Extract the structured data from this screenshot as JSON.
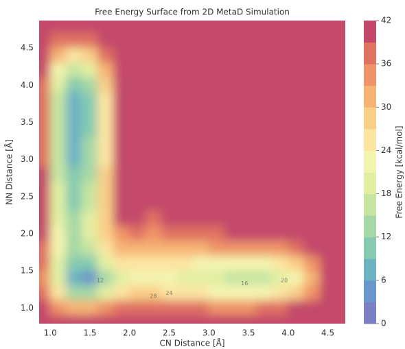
{
  "chart_data": {
    "type": "contourf",
    "title": "Free Energy Surface from 2D MetaD Simulation",
    "xlabel": "CN Distance [Å]",
    "ylabel": "NN Distance [Å]",
    "colorbar_label": "Free Energy [kcal/mol]",
    "xlim": [
      0.86,
      4.72
    ],
    "ylim": [
      0.79,
      4.87
    ],
    "xticks": [
      {
        "value": 1,
        "label": "1.0"
      },
      1.5,
      {
        "value": 2,
        "label": "2.0"
      },
      2.5,
      {
        "value": 3,
        "label": "3.0"
      },
      3.5,
      {
        "value": 4,
        "label": "4.0"
      },
      4.5
    ],
    "yticks": [
      {
        "value": 1,
        "label": "1.0"
      },
      1.5,
      {
        "value": 2,
        "label": "2.0"
      },
      2.5,
      {
        "value": 3,
        "label": "3.0"
      },
      3.5,
      {
        "value": 4,
        "label": "4.0"
      },
      4.5
    ],
    "clim": [
      0,
      42
    ],
    "cticks": [
      0,
      6,
      12,
      18,
      24,
      30,
      36,
      42
    ],
    "levels": [
      0,
      3,
      6,
      9,
      12,
      15,
      18,
      21,
      24,
      27,
      30,
      33,
      36,
      39,
      42
    ],
    "colors": [
      "#7b80c2",
      "#6a97c9",
      "#6db2c2",
      "#86cbb0",
      "#a5d8a6",
      "#c6e5a1",
      "#e2efa3",
      "#f4f4b0",
      "#fbe5a1",
      "#f9cf88",
      "#f6b474",
      "#ef9468",
      "#e07262",
      "#c4486a"
    ],
    "contour_labels": [
      {
        "x": 3.45,
        "y": 1.33,
        "level": 16
      },
      {
        "x": 3.95,
        "y": 1.37,
        "level": 20
      },
      {
        "x": 2.5,
        "y": 1.2,
        "level": 24
      },
      {
        "x": 2.3,
        "y": 1.16,
        "level": 28
      },
      {
        "x": 1.63,
        "y": 1.37,
        "level": 12
      }
    ],
    "x": [
      0.9,
      1.1,
      1.3,
      1.5,
      1.7,
      1.9,
      2.1,
      2.3,
      2.5,
      2.7,
      2.9,
      3.1,
      3.3,
      3.5,
      3.7,
      3.9,
      4.1,
      4.3,
      4.5,
      4.7
    ],
    "y": [
      4.8,
      4.6,
      4.4,
      4.2,
      4.0,
      3.8,
      3.6,
      3.4,
      3.2,
      3.0,
      2.8,
      2.6,
      2.4,
      2.2,
      2.0,
      1.8,
      1.6,
      1.4,
      1.2,
      1.0,
      0.8
    ],
    "z": [
      [
        42,
        42,
        42,
        42,
        42,
        42,
        42,
        42,
        42,
        42,
        42,
        42,
        42,
        42,
        42,
        42,
        42,
        42,
        42,
        42
      ],
      [
        42,
        38,
        36,
        38,
        42,
        42,
        42,
        42,
        42,
        42,
        42,
        42,
        42,
        42,
        42,
        42,
        42,
        42,
        42,
        42
      ],
      [
        42,
        30,
        24,
        27,
        36,
        42,
        42,
        42,
        42,
        42,
        42,
        42,
        42,
        42,
        42,
        42,
        42,
        42,
        42,
        42
      ],
      [
        40,
        22,
        15,
        18,
        30,
        42,
        42,
        42,
        42,
        42,
        42,
        42,
        42,
        42,
        42,
        42,
        42,
        42,
        42,
        42
      ],
      [
        38,
        18,
        10,
        13,
        27,
        40,
        42,
        42,
        42,
        42,
        42,
        42,
        42,
        42,
        42,
        42,
        42,
        42,
        42,
        42
      ],
      [
        38,
        16,
        7,
        11,
        25,
        40,
        42,
        42,
        42,
        42,
        42,
        42,
        42,
        42,
        42,
        42,
        42,
        42,
        42,
        42
      ],
      [
        38,
        15,
        6,
        10,
        24,
        39,
        42,
        42,
        42,
        42,
        42,
        42,
        42,
        42,
        42,
        42,
        42,
        42,
        42,
        42
      ],
      [
        38,
        15,
        7,
        11,
        24,
        39,
        42,
        42,
        42,
        42,
        42,
        42,
        42,
        42,
        42,
        42,
        42,
        42,
        42,
        42
      ],
      [
        38,
        16,
        8,
        12,
        25,
        40,
        42,
        42,
        42,
        42,
        42,
        42,
        42,
        42,
        42,
        42,
        42,
        42,
        42,
        42
      ],
      [
        38,
        16,
        8,
        13,
        26,
        40,
        42,
        42,
        42,
        42,
        42,
        42,
        42,
        42,
        42,
        42,
        42,
        42,
        42,
        42
      ],
      [
        39,
        17,
        9,
        14,
        27,
        41,
        42,
        42,
        42,
        42,
        42,
        42,
        42,
        42,
        42,
        42,
        42,
        42,
        42,
        42
      ],
      [
        39,
        18,
        10,
        15,
        28,
        41,
        42,
        42,
        42,
        42,
        42,
        42,
        42,
        42,
        42,
        42,
        42,
        42,
        42,
        42
      ],
      [
        39,
        19,
        11,
        16,
        29,
        41,
        42,
        42,
        42,
        42,
        42,
        42,
        42,
        42,
        42,
        42,
        42,
        42,
        42,
        42
      ],
      [
        39,
        20,
        12,
        18,
        29,
        39,
        40,
        38,
        39,
        40,
        41,
        42,
        42,
        42,
        42,
        42,
        42,
        42,
        42,
        42
      ],
      [
        39,
        22,
        14,
        19,
        27,
        34,
        36,
        35,
        36,
        37,
        38,
        38,
        39,
        40,
        41,
        42,
        42,
        42,
        42,
        42
      ],
      [
        38,
        22,
        13,
        17,
        25,
        30,
        32,
        31,
        31,
        32,
        32,
        33,
        33,
        33,
        34,
        35,
        36,
        40,
        42,
        42
      ],
      [
        36,
        20,
        9,
        10,
        18,
        24,
        25,
        25,
        24,
        24,
        23,
        23,
        22,
        22,
        23,
        24,
        27,
        34,
        42,
        42
      ],
      [
        34,
        18,
        6,
        5,
        14,
        20,
        22,
        22,
        21,
        20,
        19,
        18,
        16,
        16,
        17,
        18,
        22,
        30,
        40,
        42
      ],
      [
        36,
        24,
        14,
        13,
        20,
        25,
        27,
        27,
        26,
        25,
        24,
        23,
        22,
        22,
        23,
        25,
        29,
        35,
        42,
        42
      ],
      [
        40,
        34,
        30,
        30,
        33,
        36,
        37,
        37,
        37,
        36,
        36,
        35,
        35,
        35,
        36,
        37,
        39,
        42,
        42,
        42
      ],
      [
        42,
        42,
        42,
        42,
        42,
        42,
        42,
        42,
        42,
        42,
        42,
        42,
        42,
        42,
        42,
        42,
        42,
        42,
        42,
        42
      ]
    ]
  }
}
